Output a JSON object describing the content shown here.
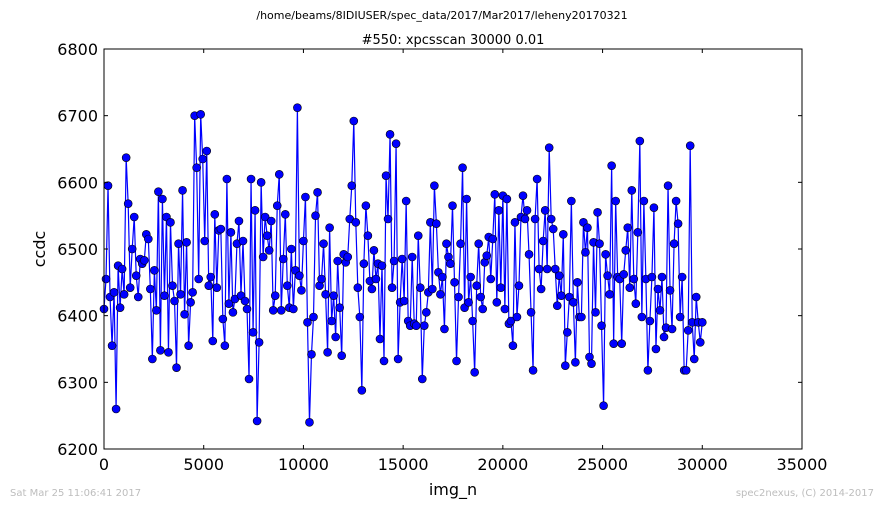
{
  "file_path": "/home/beams/8IDIUSER/spec_data/2017/Mar2017/leheny20170321",
  "footer": {
    "timestamp": "Sat Mar 25 11:06:41 2017",
    "credit": "spec2nexus, (C) 2014-2017"
  },
  "colors": {
    "series": "#0000ff",
    "axes": "#000000",
    "footer_text": "#bdbdbd"
  },
  "chart_data": {
    "type": "line",
    "markers": "filled-circle",
    "title": "#550: xpcsscan 30000 0.01",
    "xlabel": "img_n",
    "ylabel": "ccdc",
    "xlim": [
      0,
      35000
    ],
    "ylim": [
      6200,
      6800
    ],
    "xticks": [
      0,
      5000,
      10000,
      15000,
      20000,
      25000,
      30000,
      35000
    ],
    "yticks": [
      6200,
      6300,
      6400,
      6500,
      6600,
      6700,
      6800
    ],
    "grid": false,
    "legend": "none",
    "series": [
      {
        "values": [
          6410,
          6455,
          6595,
          6428,
          6355,
          6435,
          6260,
          6475,
          6412,
          6470,
          6432,
          6637,
          6568,
          6442,
          6500,
          6548,
          6460,
          6428,
          6485,
          6478,
          6483,
          6522,
          6515,
          6440,
          6335,
          6468,
          6408,
          6586,
          6348,
          6575,
          6430,
          6548,
          6345,
          6540,
          6445,
          6422,
          6322,
          6508,
          6432,
          6588,
          6402,
          6510,
          6355,
          6420,
          6435,
          6700,
          6622,
          6455,
          6702,
          6635,
          6512,
          6647,
          6445,
          6458,
          6362,
          6552,
          6442,
          6528,
          6530,
          6395,
          6355,
          6605,
          6418,
          6525,
          6405,
          6425,
          6508,
          6542,
          6430,
          6512,
          6422,
          6410,
          6305,
          6605,
          6375,
          6558,
          6242,
          6360,
          6600,
          6488,
          6548,
          6520,
          6498,
          6542,
          6408,
          6430,
          6565,
          6612,
          6408,
          6485,
          6552,
          6445,
          6412,
          6500,
          6410,
          6468,
          6712,
          6460,
          6438,
          6512,
          6578,
          6390,
          6240,
          6342,
          6398,
          6550,
          6585,
          6445,
          6455,
          6508,
          6432,
          6345,
          6532,
          6392,
          6430,
          6368,
          6482,
          6412,
          6340,
          6492,
          6480,
          6488,
          6545,
          6595,
          6692,
          6540,
          6442,
          6398,
          6288,
          6478,
          6565,
          6520,
          6452,
          6440,
          6498,
          6455,
          6478,
          6365,
          6475,
          6332,
          6610,
          6545,
          6672,
          6442,
          6482,
          6658,
          6335,
          6420,
          6485,
          6422,
          6572,
          6392,
          6385,
          6488,
          6388,
          6385,
          6520,
          6442,
          6305,
          6385,
          6405,
          6435,
          6540,
          6440,
          6595,
          6538,
          6465,
          6432,
          6458,
          6380,
          6508,
          6488,
          6478,
          6565,
          6450,
          6332,
          6428,
          6508,
          6622,
          6412,
          6575,
          6420,
          6458,
          6392,
          6315,
          6445,
          6508,
          6428,
          6410,
          6480,
          6490,
          6518,
          6455,
          6515,
          6582,
          6420,
          6558,
          6442,
          6580,
          6410,
          6575,
          6388,
          6392,
          6355,
          6540,
          6398,
          6445,
          6548,
          6580,
          6545,
          6558,
          6492,
          6405,
          6318,
          6545,
          6605,
          6470,
          6440,
          6512,
          6558,
          6470,
          6652,
          6545,
          6530,
          6470,
          6415,
          6460,
          6430,
          6522,
          6325,
          6375,
          6428,
          6572,
          6420,
          6330,
          6450,
          6398,
          6398,
          6540,
          6495,
          6532,
          6338,
          6328,
          6510,
          6405,
          6555,
          6508,
          6385,
          6265,
          6492,
          6460,
          6432,
          6625,
          6358,
          6572,
          6458,
          6455,
          6358,
          6462,
          6498,
          6532,
          6442,
          6588,
          6455,
          6418,
          6525,
          6662,
          6398,
          6572,
          6455,
          6318,
          6392,
          6458,
          6562,
          6350,
          6440,
          6408,
          6458,
          6368,
          6382,
          6595,
          6438,
          6380,
          6508,
          6572,
          6538,
          6398,
          6458,
          6318,
          6318,
          6378,
          6655,
          6390,
          6335,
          6428,
          6390,
          6360,
          6390
        ]
      }
    ]
  }
}
